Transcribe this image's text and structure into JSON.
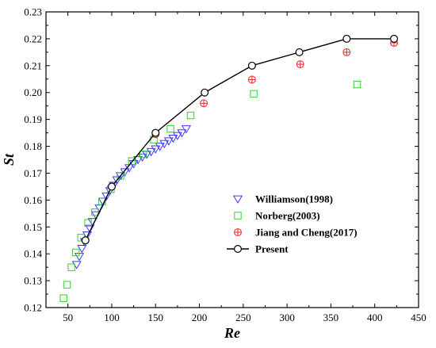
{
  "chart_data": {
    "type": "scatter",
    "title": "",
    "xlabel": "Re",
    "ylabel": "St",
    "xlim": [
      25,
      450
    ],
    "ylim": [
      0.12,
      0.23
    ],
    "x_ticks": [
      50,
      100,
      150,
      200,
      250,
      300,
      350,
      400,
      450
    ],
    "x_tick_labels": [
      "50",
      "100",
      "150",
      "200",
      "250",
      "300",
      "350",
      "400",
      "450"
    ],
    "y_ticks": [
      0.12,
      0.13,
      0.14,
      0.15,
      0.16,
      0.17,
      0.18,
      0.19,
      0.2,
      0.21,
      0.22,
      0.23
    ],
    "y_tick_labels": [
      "0.12",
      "0.13",
      "0.14",
      "0.15",
      "0.16",
      "0.17",
      "0.18",
      "0.19",
      "0.20",
      "0.21",
      "0.22",
      "0.23"
    ],
    "grid": false,
    "legend_position": "bottom-right",
    "series": [
      {
        "name": "Williamson(1998)",
        "marker": "triangle-down",
        "color": "#3a3aff",
        "x": [
          60,
          63,
          66,
          69,
          72,
          75,
          78,
          82,
          86,
          90,
          94,
          98,
          102,
          106,
          110,
          115,
          120,
          125,
          130,
          135,
          140,
          145,
          150,
          155,
          160,
          165,
          170,
          175,
          180,
          185
        ],
        "y": [
          0.136,
          0.139,
          0.142,
          0.1445,
          0.147,
          0.1495,
          0.152,
          0.1545,
          0.157,
          0.1595,
          0.1615,
          0.1635,
          0.1655,
          0.1675,
          0.169,
          0.1705,
          0.172,
          0.1735,
          0.175,
          0.176,
          0.177,
          0.178,
          0.179,
          0.18,
          0.181,
          0.182,
          0.183,
          0.184,
          0.185,
          0.1865
        ]
      },
      {
        "name": "Norberg(2003)",
        "marker": "square",
        "color": "#33cc33",
        "x": [
          45,
          49,
          54,
          59,
          65,
          73,
          81,
          89,
          99,
          110,
          123,
          136,
          148,
          167,
          190,
          262,
          380
        ],
        "y": [
          0.1235,
          0.1285,
          0.135,
          0.1405,
          0.146,
          0.1515,
          0.1555,
          0.1595,
          0.164,
          0.169,
          0.1745,
          0.177,
          0.1825,
          0.1865,
          0.1915,
          0.1995,
          0.203
        ]
      },
      {
        "name": "Jiang and Cheng(2017)",
        "marker": "circle-plus",
        "color": "#ee2222",
        "x": [
          100,
          150,
          205,
          260,
          315,
          368,
          422
        ],
        "y": [
          0.165,
          0.1845,
          0.196,
          0.2048,
          0.2105,
          0.215,
          0.2185
        ]
      },
      {
        "name": "Present",
        "marker": "circle-line",
        "color": "#000000",
        "x": [
          70,
          100,
          150,
          206,
          260,
          314,
          368,
          422
        ],
        "y": [
          0.145,
          0.165,
          0.185,
          0.2,
          0.21,
          0.215,
          0.22,
          0.22
        ]
      }
    ]
  }
}
